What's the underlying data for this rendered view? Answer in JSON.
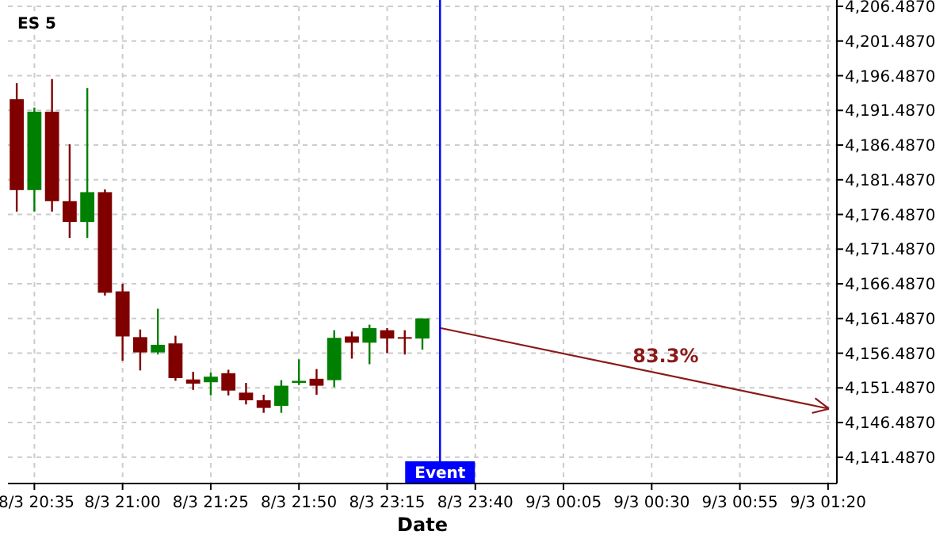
{
  "chart_data": {
    "type": "candlestick",
    "title": "ES 5",
    "xlabel": "Date",
    "categories": [
      null,
      "8/3 20:35",
      null,
      null,
      null,
      null,
      "8/3 21:00",
      null,
      null,
      null,
      null,
      "8/3 21:25",
      null,
      null,
      null,
      null,
      "8/3 21:50",
      null,
      null,
      null,
      null,
      "8/3 23:15",
      null,
      null,
      null,
      null,
      "8/3 23:40",
      null,
      null,
      null,
      null,
      "9/3 00:05",
      null,
      null,
      null,
      null,
      "9/3 00:30",
      null,
      null,
      null,
      null,
      "9/3 00:55",
      null,
      null,
      null,
      null,
      "9/3 01:20"
    ],
    "ohlc": [
      [
        4193.1,
        4195.4,
        4176.9,
        4180.0
      ],
      [
        4180.0,
        4191.9,
        4176.9,
        4191.3
      ],
      [
        4191.3,
        4196.0,
        4176.9,
        4178.4
      ],
      [
        4178.4,
        4186.6,
        4173.1,
        4175.4
      ],
      [
        4175.4,
        4194.7,
        4173.1,
        4179.7
      ],
      [
        4179.7,
        4180.1,
        4164.8,
        4165.2
      ],
      [
        4165.4,
        4166.5,
        4155.4,
        4158.9
      ],
      [
        4158.8,
        4159.9,
        4154.0,
        4156.6
      ],
      [
        4156.6,
        4162.9,
        4156.3,
        4157.7
      ],
      [
        4157.9,
        4159.0,
        4152.5,
        4152.9
      ],
      [
        4152.7,
        4153.8,
        4151.2,
        4152.1
      ],
      [
        4152.3,
        4153.7,
        4150.4,
        4153.1
      ],
      [
        4153.6,
        4154.1,
        4150.4,
        4151.1
      ],
      [
        4150.8,
        4152.2,
        4149.1,
        4149.7
      ],
      [
        4149.7,
        4150.5,
        4147.9,
        4148.6
      ],
      [
        4148.9,
        4152.6,
        4147.9,
        4151.8
      ],
      [
        4152.2,
        4155.6,
        4151.9,
        4152.5
      ],
      [
        4152.8,
        4154.2,
        4150.5,
        4151.8
      ],
      [
        4152.6,
        4159.8,
        4151.6,
        4158.7
      ],
      [
        4158.9,
        4159.6,
        4155.7,
        4158.0
      ],
      [
        4158.0,
        4160.6,
        4154.9,
        4160.1
      ],
      [
        4159.8,
        4160.1,
        4156.5,
        4158.6
      ],
      [
        4158.8,
        4159.8,
        4156.3,
        4158.6
      ],
      [
        4158.6,
        4161.5,
        4157.0,
        4161.5
      ],
      null,
      null,
      null,
      null,
      null,
      null,
      null,
      null,
      null,
      null,
      null,
      null,
      null,
      null,
      null,
      null,
      null,
      null,
      null,
      null,
      null,
      null,
      null
    ],
    "colors": [
      "#800000",
      "#008000",
      "#800000",
      "#800000",
      "#008000",
      "#800000",
      "#800000",
      "#800000",
      "#008000",
      "#800000",
      "#800000",
      "#008000",
      "#800000",
      "#800000",
      "#800000",
      "#008000",
      "#008000",
      "#800000",
      "#008000",
      "#800000",
      "#008000",
      "#800000",
      "#800000",
      "#008000",
      null,
      null,
      null,
      null,
      null,
      null,
      null,
      null,
      null,
      null,
      null,
      null,
      null,
      null,
      null,
      null,
      null,
      null,
      null,
      null,
      null,
      null,
      null
    ],
    "ylim": [
      4137.7,
      4206.487
    ],
    "yticks": [
      {
        "value": 4141.487,
        "label": "4,141.4870"
      },
      {
        "value": 4146.487,
        "label": "4,146.4870"
      },
      {
        "value": 4151.487,
        "label": "4,151.4870"
      },
      {
        "value": 4156.487,
        "label": "4,156.4870"
      },
      {
        "value": 4161.487,
        "label": "4,161.4870"
      },
      {
        "value": 4166.487,
        "label": "4,166.4870"
      },
      {
        "value": 4171.487,
        "label": "4,171.4870"
      },
      {
        "value": 4176.487,
        "label": "4,176.4870"
      },
      {
        "value": 4181.487,
        "label": "4,181.4870"
      },
      {
        "value": 4186.487,
        "label": "4,186.4870"
      },
      {
        "value": 4191.487,
        "label": "4,191.4870"
      },
      {
        "value": 4196.487,
        "label": "4,196.4870"
      },
      {
        "value": 4201.487,
        "label": "4,201.4870"
      },
      {
        "value": 4206.487,
        "label": "4,206.4870"
      }
    ],
    "grid": true,
    "ref_lines": [
      {
        "axis": "x",
        "label": "Event",
        "color": "#0000ff"
      }
    ],
    "annotations": [
      "83.3%"
    ]
  }
}
